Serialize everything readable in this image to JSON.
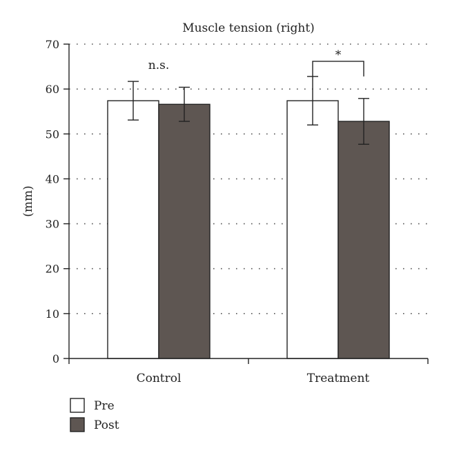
{
  "chart_data": {
    "type": "bar",
    "title": "Muscle tension (right)",
    "xlabel": "",
    "ylabel": "(mm)",
    "ylim": [
      0,
      70
    ],
    "yticks": [
      "0",
      "10",
      "20",
      "30",
      "40",
      "50",
      "60",
      "70"
    ],
    "grid": true,
    "categories": [
      "Control",
      "Treatment"
    ],
    "series": [
      {
        "name": "Pre",
        "values": [
          57.4,
          57.4
        ],
        "error": [
          4.3,
          5.4
        ],
        "color": "#ffffff"
      },
      {
        "name": "Post",
        "values": [
          56.6,
          52.8
        ],
        "error": [
          3.8,
          5.1
        ],
        "color": "#5e5652"
      }
    ],
    "annotations": [
      {
        "category": "Control",
        "text": "n.s.",
        "bracket": false
      },
      {
        "category": "Treatment",
        "text": "*",
        "bracket": true
      }
    ],
    "legend": {
      "position": "bottom-left",
      "items": [
        "Pre",
        "Post"
      ]
    }
  }
}
